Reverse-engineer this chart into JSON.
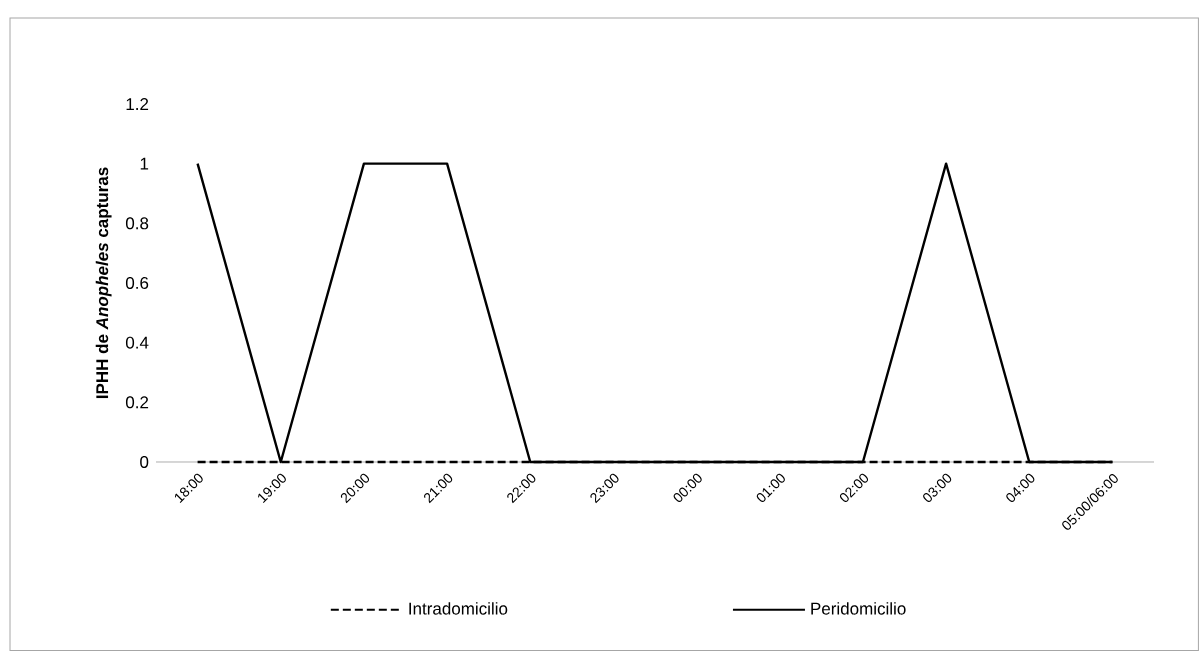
{
  "chart_data": {
    "type": "line",
    "ylabel": "IPHH de *Anopheles* capturas",
    "categories": [
      "18:00",
      "19:00",
      "20:00",
      "21:00",
      "22:00",
      "23:00",
      "00:00",
      "01:00",
      "02:00",
      "03:00",
      "04:00",
      "05:00/06:00"
    ],
    "series": [
      {
        "name": "Intradomicilio",
        "color": "#000000",
        "line_style": "dashed",
        "values": [
          0,
          0,
          0,
          0,
          0,
          0,
          0,
          0,
          0,
          0,
          0,
          0
        ]
      },
      {
        "name": "Peridomicilio",
        "color": "#000000",
        "line_style": "solid",
        "values": [
          1,
          0,
          1,
          1,
          0,
          0,
          0,
          0,
          0,
          1,
          0,
          0
        ]
      }
    ],
    "ylim": [
      0,
      1.2
    ],
    "yticks": [
      0,
      0.2,
      0.4,
      0.6,
      0.8,
      1,
      1.2
    ],
    "grid": false,
    "legend": "bottom",
    "marker": "none"
  }
}
